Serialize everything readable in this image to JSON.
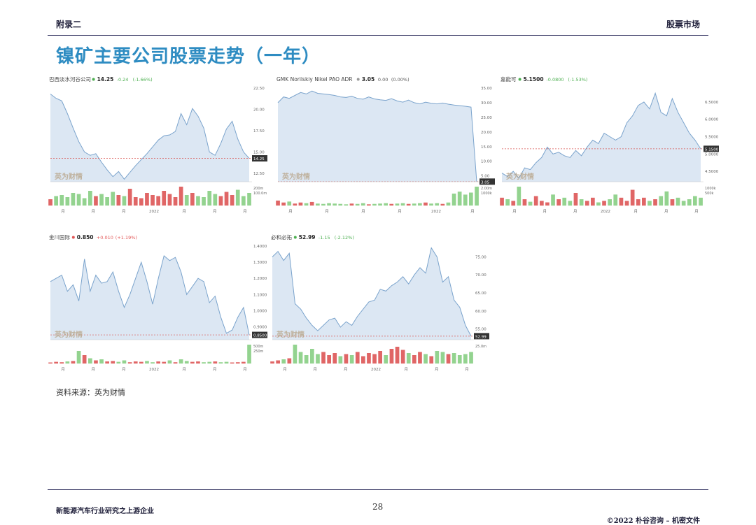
{
  "header": {
    "left": "附录二",
    "right": "股票市场"
  },
  "title": "镍矿主要公司股票走势（一年）",
  "source": "资料来源：英为财情",
  "footer": {
    "left": "新能源汽车行业研究之上游企业",
    "page": "28",
    "right": "©2022 朴谷咨询 – 机密文件"
  },
  "colors": {
    "title": "#2e8cc2",
    "area_fill": "#dce7f3",
    "line": "#7aa3cc",
    "up": "#e25555",
    "down": "#4caf50",
    "vol_up": "#e06666",
    "vol_down": "#93d38f"
  },
  "watermark": "英为财情",
  "chart_data": [
    {
      "type": "area",
      "name": "巴西淡水河谷公司",
      "price": "14.25",
      "change": "-0.24",
      "change_pct": "(-1.66%)",
      "direction": "down",
      "yticks": [
        "22.50",
        "20.00",
        "17.50",
        "15.00",
        "12.50"
      ],
      "ylim": [
        11.5,
        22.5
      ],
      "last_label": "14.25",
      "values": [
        21.8,
        21.3,
        21.0,
        19.5,
        17.8,
        16.2,
        15.0,
        14.6,
        14.8,
        13.8,
        12.9,
        12.1,
        12.7,
        11.8,
        12.6,
        13.4,
        14.1,
        14.8,
        15.6,
        16.4,
        16.9,
        17.0,
        17.4,
        19.5,
        18.2,
        20.1,
        19.2,
        17.8,
        15.0,
        14.6,
        16.0,
        17.7,
        18.6,
        16.5,
        15.0,
        14.25
      ],
      "vol_ticks": [
        "200m",
        "100.0m"
      ],
      "volumes": [
        30,
        45,
        50,
        40,
        60,
        55,
        35,
        70,
        45,
        55,
        40,
        65,
        50,
        45,
        80,
        40,
        35,
        60,
        50,
        45,
        70,
        55,
        40,
        90,
        50,
        60,
        45,
        40,
        70,
        55,
        45,
        65,
        50,
        75,
        45,
        60
      ],
      "xticks": [
        "月",
        "月",
        "月",
        "2022",
        "月",
        "月",
        "月"
      ]
    },
    {
      "type": "area",
      "name": "GMK Norilskiy Nikel PAO ADR",
      "price": "3.05",
      "change": "0.00",
      "change_pct": "(0.00%)",
      "direction": "flat",
      "yticks": [
        "35.00",
        "30.00",
        "25.00",
        "20.00",
        "15.00",
        "10.00",
        "5.00"
      ],
      "ylim": [
        3,
        35
      ],
      "last_label": "3.05",
      "values": [
        30.0,
        32.0,
        31.5,
        32.5,
        33.5,
        33.0,
        34.0,
        33.2,
        33.0,
        32.8,
        32.5,
        32.0,
        31.8,
        32.2,
        31.5,
        31.2,
        32.0,
        31.3,
        31.0,
        30.8,
        31.4,
        30.6,
        30.2,
        30.9,
        30.0,
        29.6,
        30.2,
        29.8,
        29.6,
        29.9,
        29.5,
        29.2,
        29.0,
        28.8,
        28.5,
        3.05
      ],
      "vol_ticks": [
        "2.00m",
        "1000k"
      ],
      "volumes": [
        25,
        15,
        20,
        10,
        15,
        12,
        18,
        10,
        8,
        12,
        10,
        8,
        6,
        10,
        8,
        12,
        6,
        8,
        10,
        12,
        8,
        10,
        12,
        8,
        10,
        12,
        15,
        10,
        12,
        8,
        15,
        60,
        70,
        55,
        65,
        95
      ],
      "xticks": [
        "月",
        "月",
        "月",
        "月",
        "2022",
        "月"
      ]
    },
    {
      "type": "area",
      "name": "嘉能可",
      "price": "5.1500",
      "change": "-0.0800",
      "change_pct": "(-1.53%)",
      "direction": "down",
      "yticks": [
        "6.5000",
        "6.0000",
        "5.5000",
        "5.0000",
        "4.5000"
      ],
      "ylim": [
        4.2,
        6.9
      ],
      "last_label": "5.1500",
      "values": [
        4.45,
        4.35,
        4.5,
        4.3,
        4.6,
        4.55,
        4.75,
        4.9,
        5.2,
        5.0,
        5.05,
        4.95,
        4.9,
        5.1,
        4.95,
        5.2,
        5.4,
        5.3,
        5.6,
        5.5,
        5.4,
        5.5,
        5.9,
        6.1,
        6.4,
        6.5,
        6.3,
        6.75,
        6.2,
        6.1,
        6.6,
        6.2,
        5.9,
        5.6,
        5.4,
        5.15
      ],
      "vol_ticks": [
        "1000k",
        "500k"
      ],
      "volumes": [
        25,
        20,
        15,
        60,
        20,
        12,
        30,
        15,
        10,
        35,
        20,
        25,
        15,
        40,
        20,
        15,
        25,
        10,
        15,
        20,
        35,
        25,
        15,
        50,
        20,
        25,
        15,
        20,
        30,
        45,
        20,
        25,
        15,
        20,
        30,
        25
      ],
      "xticks": [
        "月",
        "月",
        "月",
        "2022",
        "月",
        "月",
        "月"
      ]
    },
    {
      "type": "area",
      "name": "金川国际",
      "price": "0.850",
      "change": "+0.010",
      "change_pct": "(+1.19%)",
      "direction": "up",
      "yticks": [
        "1.4000",
        "1.3000",
        "1.2000",
        "1.1000",
        "1.0000",
        "0.9000"
      ],
      "ylim": [
        0.82,
        1.4
      ],
      "last_label": "0.8500",
      "values": [
        1.18,
        1.2,
        1.22,
        1.12,
        1.16,
        1.06,
        1.32,
        1.12,
        1.22,
        1.17,
        1.18,
        1.24,
        1.12,
        1.02,
        1.1,
        1.2,
        1.3,
        1.18,
        1.04,
        1.2,
        1.34,
        1.31,
        1.33,
        1.24,
        1.1,
        1.15,
        1.2,
        1.18,
        1.05,
        1.09,
        0.96,
        0.86,
        0.88,
        0.96,
        1.02,
        0.85
      ],
      "vol_ticks": [
        "500m",
        "250m"
      ],
      "volumes": [
        5,
        8,
        6,
        10,
        12,
        60,
        40,
        25,
        15,
        20,
        10,
        12,
        8,
        15,
        6,
        10,
        8,
        12,
        6,
        10,
        8,
        15,
        6,
        20,
        12,
        8,
        10,
        6,
        8,
        10,
        6,
        8,
        5,
        6,
        8,
        90
      ],
      "xticks": [
        "月",
        "月",
        "月",
        "2022",
        "月",
        "月",
        "月"
      ]
    },
    {
      "type": "area",
      "name": "必和必拓",
      "price": "52.99",
      "change": "-1.15",
      "change_pct": "(-2.12%)",
      "direction": "down",
      "yticks": [
        "75.00",
        "70.00",
        "65.00",
        "60.00",
        "55.00"
      ],
      "ylim": [
        52,
        78
      ],
      "last_label": "52.99",
      "values": [
        75.0,
        76.5,
        74.0,
        76.0,
        62.0,
        60.5,
        58.0,
        56.0,
        54.5,
        56.0,
        57.5,
        58.0,
        55.5,
        57.0,
        56.0,
        58.5,
        60.5,
        62.5,
        63.0,
        66.0,
        65.5,
        67.0,
        68.0,
        69.5,
        67.5,
        70.0,
        72.0,
        70.5,
        77.5,
        75.0,
        68.0,
        69.5,
        63.0,
        61.0,
        56.0,
        52.99
      ],
      "vol_ticks": [
        "25.0m"
      ],
      "volumes": [
        10,
        15,
        20,
        25,
        90,
        55,
        40,
        70,
        45,
        55,
        40,
        50,
        35,
        45,
        40,
        55,
        35,
        50,
        45,
        60,
        40,
        70,
        80,
        65,
        50,
        40,
        55,
        45,
        35,
        60,
        55,
        45,
        50,
        40,
        45,
        55
      ],
      "xticks": [
        "月",
        "月",
        "月",
        "2022",
        "月",
        "月",
        "月"
      ]
    }
  ]
}
